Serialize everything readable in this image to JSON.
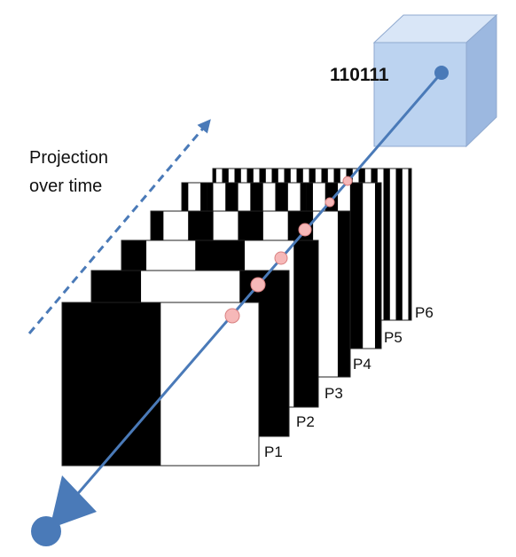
{
  "annotation": "Projection over time",
  "annotation_lines": [
    "Projection",
    "over time"
  ],
  "code": "110111",
  "patterns": [
    {
      "label": "P1",
      "stripes": 2
    },
    {
      "label": "P2",
      "stripes": 4
    },
    {
      "label": "P3",
      "stripes": 8
    },
    {
      "label": "P4",
      "stripes": 16
    },
    {
      "label": "P5",
      "stripes": 32
    },
    {
      "label": "P6",
      "stripes": 64
    }
  ],
  "colors": {
    "ray": "#4a7ab8",
    "cube_front": "#bcd3f0",
    "cube_top": "#d9e6f7",
    "cube_side": "#9cb8e0",
    "marker": "#f6b8b8",
    "marker_stroke": "#d98080",
    "stripe_dark": "#000000",
    "stripe_light": "#ffffff"
  },
  "icons": [
    "projector-icon",
    "voxel-cube-icon",
    "projection-direction-arrow"
  ]
}
